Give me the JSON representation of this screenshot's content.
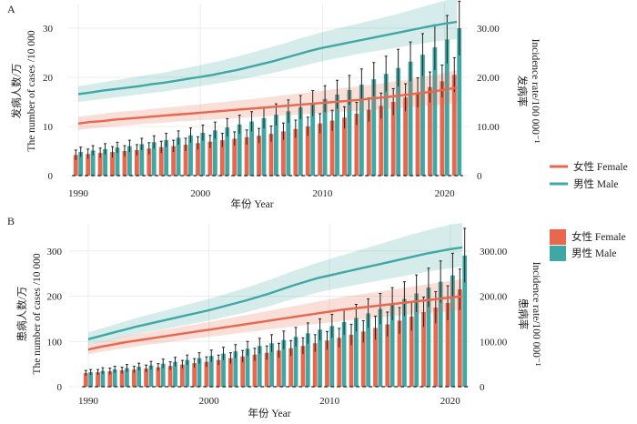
{
  "colors": {
    "female": "#e8674d",
    "male": "#3fa7a4"
  },
  "legend": {
    "line_female": "女性 Female",
    "line_male": "男性 Male",
    "bar_female": "女性 Female",
    "bar_male": "男性 Male"
  },
  "chart_data": [
    {
      "panel": "A",
      "type": "bar+line",
      "xlabel": "年份 Year",
      "ylabel_left": [
        "发病人数/万",
        "The number of cases /10 000"
      ],
      "ylabel_right": [
        "发病率",
        "Incidence rate/100 000⁻¹"
      ],
      "xticks": [
        1990,
        2000,
        2010,
        2020
      ],
      "yticks_left": [
        0,
        10,
        20,
        30
      ],
      "yticks_right": [
        "0",
        "10.00",
        "20.00",
        "30.00"
      ],
      "ylim": [
        0,
        35
      ],
      "years": [
        1990,
        1991,
        1992,
        1993,
        1994,
        1995,
        1996,
        1997,
        1998,
        1999,
        2000,
        2001,
        2002,
        2003,
        2004,
        2005,
        2006,
        2007,
        2008,
        2009,
        2010,
        2011,
        2012,
        2013,
        2014,
        2015,
        2016,
        2017,
        2018,
        2019,
        2020,
        2021
      ],
      "bars": [
        {
          "name": "女性 Female",
          "values": [
            4.2,
            4.4,
            4.6,
            4.8,
            5.0,
            5.2,
            5.5,
            5.8,
            6.0,
            6.3,
            6.6,
            6.9,
            7.2,
            7.5,
            7.8,
            8.1,
            8.5,
            9.0,
            9.5,
            10.0,
            10.6,
            11.2,
            11.8,
            12.6,
            13.4,
            14.2,
            15.0,
            15.9,
            16.9,
            18.0,
            19.2,
            20.5
          ],
          "errors": [
            1.0,
            1.0,
            1.0,
            1.1,
            1.1,
            1.1,
            1.2,
            1.2,
            1.2,
            1.3,
            1.3,
            1.3,
            1.4,
            1.4,
            1.5,
            1.5,
            1.6,
            1.7,
            1.8,
            1.9,
            2.0,
            2.1,
            2.2,
            2.3,
            2.4,
            2.6,
            2.7,
            2.8,
            3.0,
            3.1,
            3.3,
            3.5
          ]
        },
        {
          "name": "男性 Male",
          "values": [
            4.8,
            5.1,
            5.4,
            5.7,
            6.0,
            6.4,
            6.8,
            7.2,
            7.7,
            8.2,
            8.7,
            9.2,
            9.8,
            10.4,
            11.0,
            11.7,
            12.4,
            13.1,
            13.9,
            14.7,
            15.6,
            16.5,
            17.4,
            18.5,
            19.6,
            20.7,
            21.9,
            23.2,
            24.6,
            26.1,
            27.7,
            30.0
          ],
          "errors": [
            1.0,
            1.0,
            1.1,
            1.1,
            1.2,
            1.2,
            1.3,
            1.4,
            1.4,
            1.5,
            1.6,
            1.7,
            1.8,
            1.9,
            2.0,
            2.1,
            2.2,
            2.3,
            2.4,
            2.6,
            2.7,
            2.9,
            3.0,
            3.2,
            3.4,
            3.6,
            3.8,
            4.0,
            4.3,
            4.6,
            4.9,
            5.5
          ]
        }
      ],
      "lines": [
        {
          "name": "女性 Female",
          "values": [
            10.6,
            10.9,
            11.1,
            11.4,
            11.6,
            11.8,
            12.0,
            12.2,
            12.4,
            12.6,
            12.8,
            13.0,
            13.2,
            13.4,
            13.6,
            13.8,
            14.0,
            14.2,
            14.4,
            14.6,
            14.8,
            15.0,
            15.2,
            15.4,
            15.7,
            15.9,
            16.2,
            16.5,
            16.8,
            17.1,
            17.5,
            17.9
          ],
          "lower": [
            9.3,
            9.6,
            9.8,
            10.0,
            10.2,
            10.4,
            10.6,
            10.8,
            11.0,
            11.1,
            11.3,
            11.4,
            11.6,
            11.7,
            11.9,
            12.0,
            12.2,
            12.3,
            12.4,
            12.6,
            12.7,
            12.9,
            13.0,
            13.2,
            13.3,
            13.5,
            13.7,
            13.9,
            14.1,
            14.3,
            14.5,
            14.7
          ],
          "upper": [
            12.0,
            12.3,
            12.6,
            12.9,
            13.1,
            13.3,
            13.6,
            13.8,
            14.0,
            14.3,
            14.5,
            14.8,
            15.0,
            15.3,
            15.5,
            15.8,
            16.1,
            16.4,
            16.7,
            17.0,
            17.3,
            17.6,
            17.9,
            18.2,
            18.5,
            18.8,
            19.2,
            19.6,
            20.0,
            20.4,
            20.9,
            21.5
          ]
        },
        {
          "name": "男性 Male",
          "values": [
            16.6,
            16.9,
            17.3,
            17.6,
            17.9,
            18.2,
            18.6,
            18.9,
            19.3,
            19.7,
            20.1,
            20.5,
            21.0,
            21.5,
            22.1,
            22.7,
            23.3,
            24.0,
            24.7,
            25.4,
            26.0,
            26.5,
            27.0,
            27.5,
            28.0,
            28.5,
            29.0,
            29.5,
            30.0,
            30.5,
            30.9,
            31.3
          ],
          "lower": [
            15.0,
            15.3,
            15.6,
            15.9,
            16.2,
            16.5,
            16.8,
            17.1,
            17.5,
            17.8,
            18.2,
            18.6,
            19.0,
            19.4,
            19.9,
            20.4,
            20.9,
            21.5,
            22.1,
            22.7,
            23.3,
            23.8,
            24.3,
            24.8,
            25.2,
            25.6,
            26.0,
            26.4,
            26.8,
            27.2,
            27.5,
            27.8
          ],
          "upper": [
            18.2,
            18.6,
            19.0,
            19.4,
            19.8,
            20.2,
            20.6,
            21.0,
            21.5,
            22.0,
            22.5,
            23.0,
            23.6,
            24.2,
            24.9,
            25.6,
            26.3,
            27.0,
            27.8,
            28.5,
            29.2,
            29.8,
            30.4,
            31.0,
            31.6,
            32.2,
            32.8,
            33.5,
            34.2,
            34.9,
            35.6,
            36.2
          ]
        }
      ]
    },
    {
      "panel": "B",
      "type": "bar+line",
      "xlabel": "年份 Year",
      "ylabel_left": [
        "患病人数/万",
        "The number of cases /10 000"
      ],
      "ylabel_right": [
        "患病率",
        "Incidence rate/100 000⁻¹"
      ],
      "xticks": [
        1990,
        2000,
        2010,
        2020
      ],
      "yticks_left": [
        0,
        100,
        200,
        300
      ],
      "yticks_right": [
        "0",
        "100.00",
        "200.00",
        "300.00"
      ],
      "ylim": [
        0,
        360
      ],
      "years": [
        1990,
        1991,
        1992,
        1993,
        1994,
        1995,
        1996,
        1997,
        1998,
        1999,
        2000,
        2001,
        2002,
        2003,
        2004,
        2005,
        2006,
        2007,
        2008,
        2009,
        2010,
        2011,
        2012,
        2013,
        2014,
        2015,
        2016,
        2017,
        2018,
        2019,
        2020,
        2021
      ],
      "bars": [
        {
          "name": "女性 Female",
          "values": [
            30,
            32,
            34,
            36,
            38,
            40,
            43,
            46,
            49,
            52,
            55,
            59,
            63,
            67,
            71,
            75,
            80,
            85,
            90,
            96,
            102,
            108,
            115,
            122,
            130,
            138,
            146,
            155,
            165,
            175,
            185,
            215
          ],
          "errors": [
            6,
            6,
            7,
            7,
            7,
            8,
            8,
            9,
            9,
            10,
            11,
            11,
            12,
            13,
            14,
            15,
            16,
            17,
            18,
            19,
            20,
            21,
            23,
            24,
            26,
            27,
            29,
            31,
            33,
            35,
            38,
            45
          ]
        },
        {
          "name": "男性 Male",
          "values": [
            32,
            35,
            38,
            41,
            44,
            47,
            51,
            55,
            59,
            63,
            68,
            73,
            78,
            84,
            90,
            96,
            103,
            110,
            118,
            126,
            134,
            143,
            152,
            162,
            172,
            183,
            194,
            206,
            219,
            232,
            246,
            290
          ],
          "errors": [
            6,
            7,
            7,
            8,
            8,
            9,
            10,
            10,
            11,
            12,
            13,
            14,
            15,
            16,
            17,
            19,
            20,
            21,
            23,
            24,
            26,
            28,
            30,
            32,
            34,
            36,
            38,
            41,
            43,
            46,
            49,
            60
          ]
        }
      ],
      "lines": [
        {
          "name": "女性 Female",
          "values": [
            82,
            88,
            93,
            98,
            102,
            106,
            110,
            114,
            118,
            122,
            126,
            130,
            134,
            138,
            142,
            146,
            150,
            154,
            158,
            162,
            166,
            170,
            173,
            176,
            179,
            182,
            185,
            188,
            191,
            194,
            197,
            200
          ],
          "lower": [
            72,
            77,
            81,
            85,
            89,
            93,
            96,
            100,
            103,
            107,
            110,
            113,
            117,
            120,
            123,
            127,
            130,
            133,
            136,
            139,
            142,
            145,
            148,
            150,
            153,
            155,
            158,
            160,
            162,
            165,
            167,
            170
          ],
          "upper": [
            92,
            99,
            105,
            111,
            116,
            120,
            125,
            129,
            134,
            138,
            143,
            148,
            153,
            158,
            163,
            168,
            173,
            178,
            183,
            188,
            193,
            198,
            202,
            206,
            210,
            214,
            218,
            222,
            226,
            230,
            234,
            238
          ]
        },
        {
          "name": "男性 Male",
          "values": [
            105,
            112,
            119,
            126,
            133,
            139,
            145,
            151,
            157,
            163,
            169,
            176,
            183,
            190,
            198,
            206,
            215,
            224,
            232,
            240,
            246,
            252,
            258,
            264,
            270,
            276,
            282,
            288,
            294,
            299,
            304,
            308
          ],
          "lower": [
            92,
            98,
            104,
            110,
            116,
            121,
            126,
            131,
            136,
            141,
            146,
            152,
            158,
            164,
            171,
            178,
            186,
            194,
            201,
            208,
            214,
            219,
            224,
            229,
            234,
            239,
            244,
            249,
            254,
            258,
            262,
            266
          ],
          "upper": [
            120,
            128,
            136,
            144,
            152,
            159,
            166,
            173,
            180,
            187,
            194,
            202,
            210,
            218,
            227,
            236,
            246,
            256,
            265,
            274,
            282,
            290,
            298,
            306,
            314,
            322,
            330,
            338,
            345,
            352,
            358,
            362
          ]
        }
      ]
    }
  ]
}
